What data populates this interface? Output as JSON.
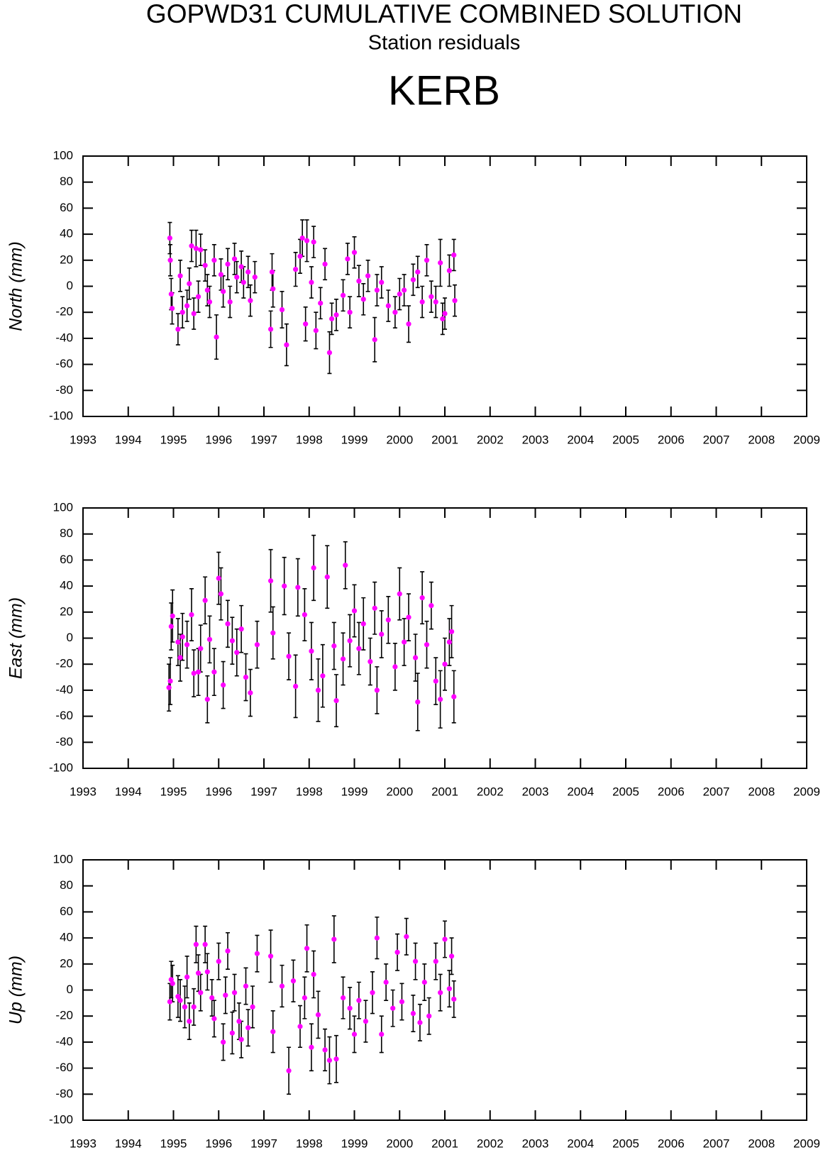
{
  "header": {
    "title": "GOPWD31 CUMULATIVE COMBINED SOLUTION",
    "subtitle": "Station residuals",
    "station": "KERB"
  },
  "chart_data": [
    {
      "type": "scatter",
      "y_label": "North (mm)",
      "color": "#ff00ff",
      "error_color": "#000000",
      "xlim": [
        1993,
        2009
      ],
      "xticks": [
        1993,
        1994,
        1995,
        1996,
        1997,
        1998,
        1999,
        2000,
        2001,
        2002,
        2003,
        2004,
        2005,
        2006,
        2007,
        2008,
        2009
      ],
      "ylim": [
        -100,
        100
      ],
      "yticks": [
        -100,
        -80,
        -60,
        -40,
        -20,
        0,
        20,
        40,
        60,
        80,
        100
      ],
      "x": [
        1994.92,
        1994.93,
        1994.95,
        1994.97,
        1995.1,
        1995.15,
        1995.2,
        1995.3,
        1995.35,
        1995.4,
        1995.45,
        1995.5,
        1995.55,
        1995.6,
        1995.7,
        1995.75,
        1995.8,
        1995.9,
        1995.95,
        1996.05,
        1996.1,
        1996.2,
        1996.25,
        1996.35,
        1996.4,
        1996.5,
        1996.55,
        1996.65,
        1996.7,
        1996.8,
        1997.15,
        1997.18,
        1997.2,
        1997.4,
        1997.5,
        1997.7,
        1997.8,
        1997.85,
        1997.92,
        1997.95,
        1998.05,
        1998.1,
        1998.15,
        1998.25,
        1998.35,
        1998.45,
        1998.5,
        1998.6,
        1998.75,
        1998.85,
        1998.9,
        1999.0,
        1999.1,
        1999.2,
        1999.3,
        1999.45,
        1999.5,
        1999.6,
        1999.75,
        1999.9,
        2000.0,
        2000.1,
        2000.2,
        2000.3,
        2000.4,
        2000.5,
        2000.6,
        2000.7,
        2000.8,
        2000.9,
        2000.95,
        2001.0,
        2001.1,
        2001.2,
        2001.22
      ],
      "values": [
        37,
        20,
        -6,
        -17,
        -33,
        8,
        -20,
        -15,
        2,
        31,
        -21,
        29,
        -8,
        28,
        16,
        -3,
        -12,
        20,
        -39,
        9,
        -4,
        17,
        -12,
        21,
        7,
        15,
        3,
        11,
        -11,
        7,
        -33,
        11,
        -2,
        -18,
        -45,
        13,
        23,
        37,
        -29,
        35,
        3,
        34,
        -34,
        -13,
        17,
        -51,
        -25,
        -22,
        -7,
        21,
        -20,
        26,
        4,
        -10,
        8,
        -41,
        -3,
        3,
        -15,
        -20,
        -6,
        -3,
        -29,
        5,
        11,
        -12,
        20,
        -8,
        -12,
        18,
        -25,
        -21,
        12,
        24,
        -11
      ],
      "errors": [
        12,
        12,
        12,
        12,
        12,
        12,
        12,
        12,
        12,
        12,
        12,
        14,
        12,
        12,
        12,
        12,
        12,
        12,
        17,
        12,
        12,
        12,
        12,
        12,
        12,
        12,
        12,
        12,
        12,
        12,
        14,
        14,
        14,
        14,
        16,
        13,
        13,
        14,
        13,
        16,
        12,
        12,
        14,
        12,
        12,
        16,
        12,
        12,
        12,
        12,
        12,
        12,
        12,
        12,
        12,
        17,
        12,
        12,
        12,
        12,
        12,
        12,
        14,
        12,
        12,
        12,
        12,
        12,
        12,
        18,
        12,
        12,
        12,
        12,
        12
      ]
    },
    {
      "type": "scatter",
      "y_label": "East (mm)",
      "color": "#ff00ff",
      "error_color": "#000000",
      "xlim": [
        1993,
        2009
      ],
      "xticks": [
        1993,
        1994,
        1995,
        1996,
        1997,
        1998,
        1999,
        2000,
        2001,
        2002,
        2003,
        2004,
        2005,
        2006,
        2007,
        2008,
        2009
      ],
      "ylim": [
        -100,
        100
      ],
      "yticks": [
        -100,
        -80,
        -60,
        -40,
        -20,
        0,
        20,
        40,
        60,
        80,
        100
      ],
      "x": [
        1994.9,
        1994.93,
        1994.95,
        1994.98,
        1995.1,
        1995.15,
        1995.2,
        1995.3,
        1995.4,
        1995.45,
        1995.55,
        1995.6,
        1995.7,
        1995.75,
        1995.8,
        1995.9,
        1996.0,
        1996.05,
        1996.1,
        1996.2,
        1996.3,
        1996.4,
        1996.5,
        1996.6,
        1996.7,
        1996.85,
        1997.15,
        1997.2,
        1997.45,
        1997.55,
        1997.7,
        1997.75,
        1997.9,
        1998.05,
        1998.1,
        1998.2,
        1998.3,
        1998.4,
        1998.55,
        1998.6,
        1998.75,
        1998.8,
        1998.9,
        1999.0,
        1999.1,
        1999.2,
        1999.35,
        1999.45,
        1999.5,
        1999.6,
        1999.75,
        1999.9,
        2000.0,
        2000.1,
        2000.2,
        2000.35,
        2000.4,
        2000.5,
        2000.6,
        2000.7,
        2000.8,
        2000.9,
        2001.0,
        2001.1,
        2001.15,
        2001.2
      ],
      "values": [
        -38,
        -33,
        9,
        17,
        -3,
        -15,
        1,
        -5,
        18,
        -27,
        -26,
        -8,
        29,
        -47,
        -1,
        -26,
        46,
        34,
        -36,
        11,
        -2,
        -11,
        7,
        -30,
        -42,
        -5,
        44,
        4,
        40,
        -14,
        -37,
        39,
        18,
        -10,
        54,
        -40,
        -29,
        47,
        -6,
        -48,
        -16,
        56,
        -2,
        21,
        -8,
        11,
        -18,
        23,
        -40,
        3,
        14,
        -22,
        34,
        -3,
        16,
        -15,
        -49,
        31,
        -5,
        25,
        -33,
        -47,
        -20,
        -3,
        5,
        -45
      ],
      "errors": [
        18,
        18,
        18,
        20,
        18,
        18,
        18,
        18,
        20,
        18,
        18,
        18,
        18,
        18,
        18,
        18,
        20,
        20,
        18,
        18,
        18,
        18,
        18,
        18,
        18,
        18,
        24,
        20,
        22,
        18,
        24,
        22,
        20,
        22,
        25,
        24,
        24,
        24,
        18,
        20,
        20,
        18,
        20,
        20,
        20,
        20,
        18,
        20,
        18,
        18,
        18,
        18,
        20,
        18,
        18,
        18,
        22,
        20,
        18,
        18,
        18,
        22,
        20,
        18,
        20,
        20
      ]
    },
    {
      "type": "scatter",
      "y_label": "Up (mm)",
      "color": "#ff00ff",
      "error_color": "#000000",
      "xlim": [
        1993,
        2009
      ],
      "xticks": [
        1993,
        1994,
        1995,
        1996,
        1997,
        1998,
        1999,
        2000,
        2001,
        2002,
        2003,
        2004,
        2005,
        2006,
        2007,
        2008,
        2009
      ],
      "ylim": [
        -100,
        100
      ],
      "yticks": [
        -100,
        -80,
        -60,
        -40,
        -20,
        0,
        20,
        40,
        60,
        80,
        100
      ],
      "x": [
        1994.92,
        1994.95,
        1994.98,
        1995.1,
        1995.15,
        1995.25,
        1995.3,
        1995.35,
        1995.45,
        1995.5,
        1995.55,
        1995.6,
        1995.7,
        1995.75,
        1995.85,
        1995.9,
        1996.0,
        1996.1,
        1996.15,
        1996.2,
        1996.3,
        1996.35,
        1996.45,
        1996.5,
        1996.6,
        1996.65,
        1996.75,
        1996.85,
        1997.15,
        1997.2,
        1997.4,
        1997.55,
        1997.65,
        1997.8,
        1997.9,
        1997.95,
        1998.05,
        1998.1,
        1998.2,
        1998.35,
        1998.45,
        1998.55,
        1998.6,
        1998.75,
        1998.9,
        1999.0,
        1999.1,
        1999.25,
        1999.4,
        1999.5,
        1999.6,
        1999.7,
        1999.85,
        1999.95,
        2000.05,
        2000.15,
        2000.3,
        2000.35,
        2000.45,
        2000.55,
        2000.65,
        2000.8,
        2000.9,
        2001.0,
        2001.1,
        2001.15,
        2001.2
      ],
      "values": [
        -9,
        8,
        5,
        -5,
        -8,
        -13,
        10,
        -24,
        -13,
        35,
        13,
        -2,
        35,
        14,
        -6,
        -22,
        22,
        -40,
        -4,
        30,
        -33,
        -2,
        -24,
        -38,
        3,
        -29,
        -13,
        28,
        26,
        -32,
        3,
        -62,
        7,
        -28,
        -6,
        32,
        -44,
        12,
        -19,
        -46,
        -54,
        39,
        -53,
        -6,
        -14,
        -34,
        -8,
        -24,
        -2,
        40,
        -34,
        6,
        -14,
        29,
        -9,
        41,
        -18,
        22,
        -25,
        6,
        -20,
        22,
        -2,
        39,
        1,
        26,
        -7
      ],
      "errors": [
        14,
        14,
        14,
        16,
        16,
        16,
        16,
        14,
        14,
        14,
        14,
        14,
        14,
        14,
        14,
        14,
        14,
        14,
        14,
        14,
        16,
        14,
        14,
        14,
        14,
        14,
        16,
        14,
        20,
        16,
        16,
        18,
        16,
        16,
        16,
        18,
        18,
        18,
        18,
        16,
        18,
        18,
        18,
        16,
        16,
        14,
        14,
        16,
        16,
        16,
        14,
        14,
        14,
        14,
        14,
        14,
        14,
        14,
        14,
        14,
        14,
        14,
        14,
        14,
        14,
        14,
        14
      ]
    }
  ]
}
